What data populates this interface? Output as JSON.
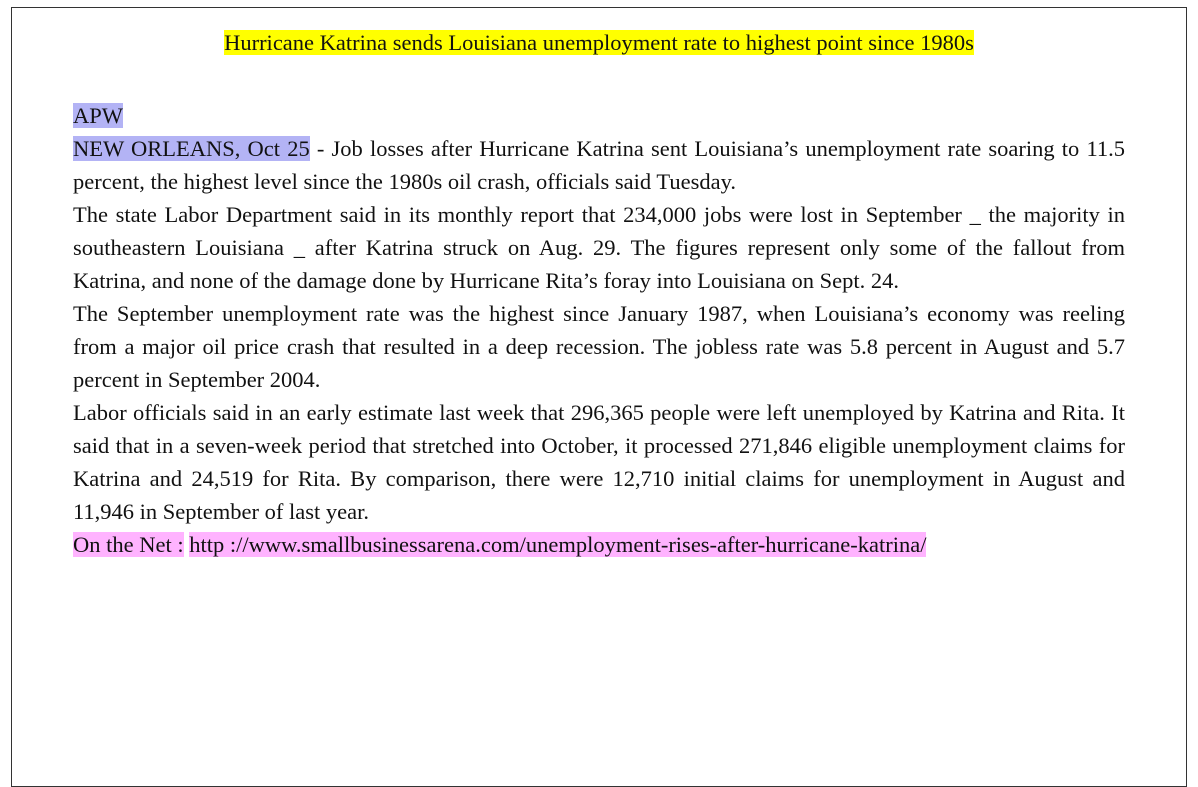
{
  "title": "Hurricane Katrina sends Louisiana unemployment rate to highest point since 1980s",
  "source": "APW",
  "dateline": "NEW ORLEANS, Oct 25",
  "paragraphs": [
    " - Job losses after Hurricane Katrina sent Louisiana’s unemployment rate soaring to 11.5 percent, the highest level since the 1980s oil crash, officials said Tuesday.",
    "The state Labor Department said in its monthly report that 234,000 jobs were lost in September _ the majority in southeastern Louisiana _ after Katrina struck on Aug. 29. The figures represent only some of the fallout from Katrina, and none of the damage done by Hurricane Rita’s foray into Louisiana on Sept. 24.",
    "The September unemployment rate was the highest since January 1987, when Louisiana’s economy was reeling from a major oil price crash that resulted in a deep recession. The jobless rate was 5.8 percent in August and 5.7 percent in September 2004.",
    "Labor officials said in an early estimate last week that 296,365 people were left unemployed by Katrina and Rita. It said that in a seven-week period that stretched into October, it processed 271,846 eligible unemployment claims for Katrina and 24,519 for Rita. By comparison, there were 12,710 initial claims for unemployment in August and 11,946 in September of last year."
  ],
  "net_label": "On the Net :",
  "net_url": "http ://www.smallbusinessarena.com/unemployment-rises-after-hurricane-katrina/"
}
